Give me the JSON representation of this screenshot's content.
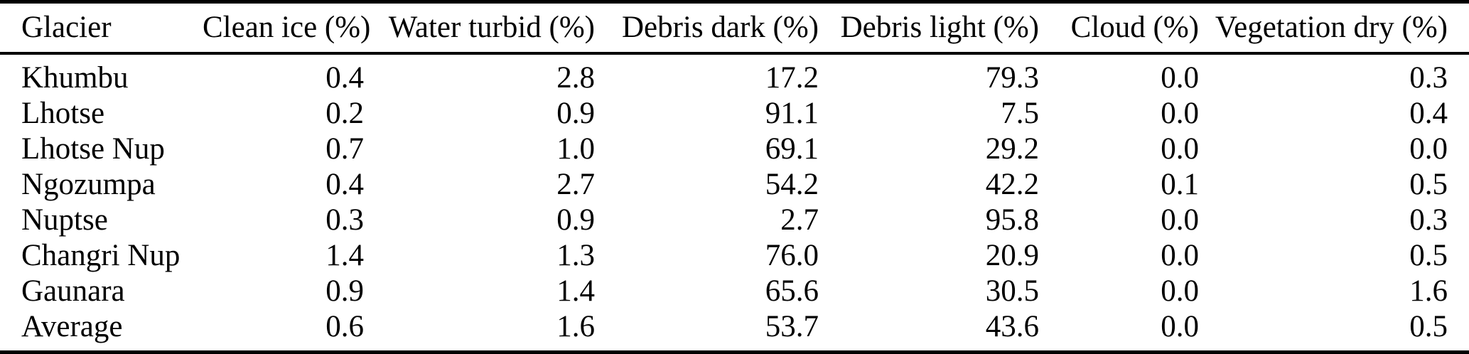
{
  "table": {
    "title": "glacier-surface-classification-percentages",
    "columns": [
      "Glacier",
      "Clean ice (%)",
      "Water turbid (%)",
      "Debris dark (%)",
      "Debris light (%)",
      "Cloud (%)",
      "Vegetation dry (%)"
    ],
    "rows": [
      {
        "glacier": "Khumbu",
        "values": [
          "0.4",
          "2.8",
          "17.2",
          "79.3",
          "0.0",
          "0.3"
        ]
      },
      {
        "glacier": "Lhotse",
        "values": [
          "0.2",
          "0.9",
          "91.1",
          "7.5",
          "0.0",
          "0.4"
        ]
      },
      {
        "glacier": "Lhotse Nup",
        "values": [
          "0.7",
          "1.0",
          "69.1",
          "29.2",
          "0.0",
          "0.0"
        ]
      },
      {
        "glacier": "Ngozumpa",
        "values": [
          "0.4",
          "2.7",
          "54.2",
          "42.2",
          "0.1",
          "0.5"
        ]
      },
      {
        "glacier": "Nuptse",
        "values": [
          "0.3",
          "0.9",
          "2.7",
          "95.8",
          "0.0",
          "0.3"
        ]
      },
      {
        "glacier": "Changri Nup",
        "values": [
          "1.4",
          "1.3",
          "76.0",
          "20.9",
          "0.0",
          "0.5"
        ]
      },
      {
        "glacier": "Gaunara",
        "values": [
          "0.9",
          "1.4",
          "65.6",
          "30.5",
          "0.0",
          "1.6"
        ]
      },
      {
        "glacier": "Average",
        "values": [
          "0.6",
          "1.6",
          "53.7",
          "43.6",
          "0.0",
          "0.5"
        ]
      }
    ]
  },
  "colors": {
    "text": "#000000",
    "background": "#ffffff",
    "rule": "#000000"
  }
}
